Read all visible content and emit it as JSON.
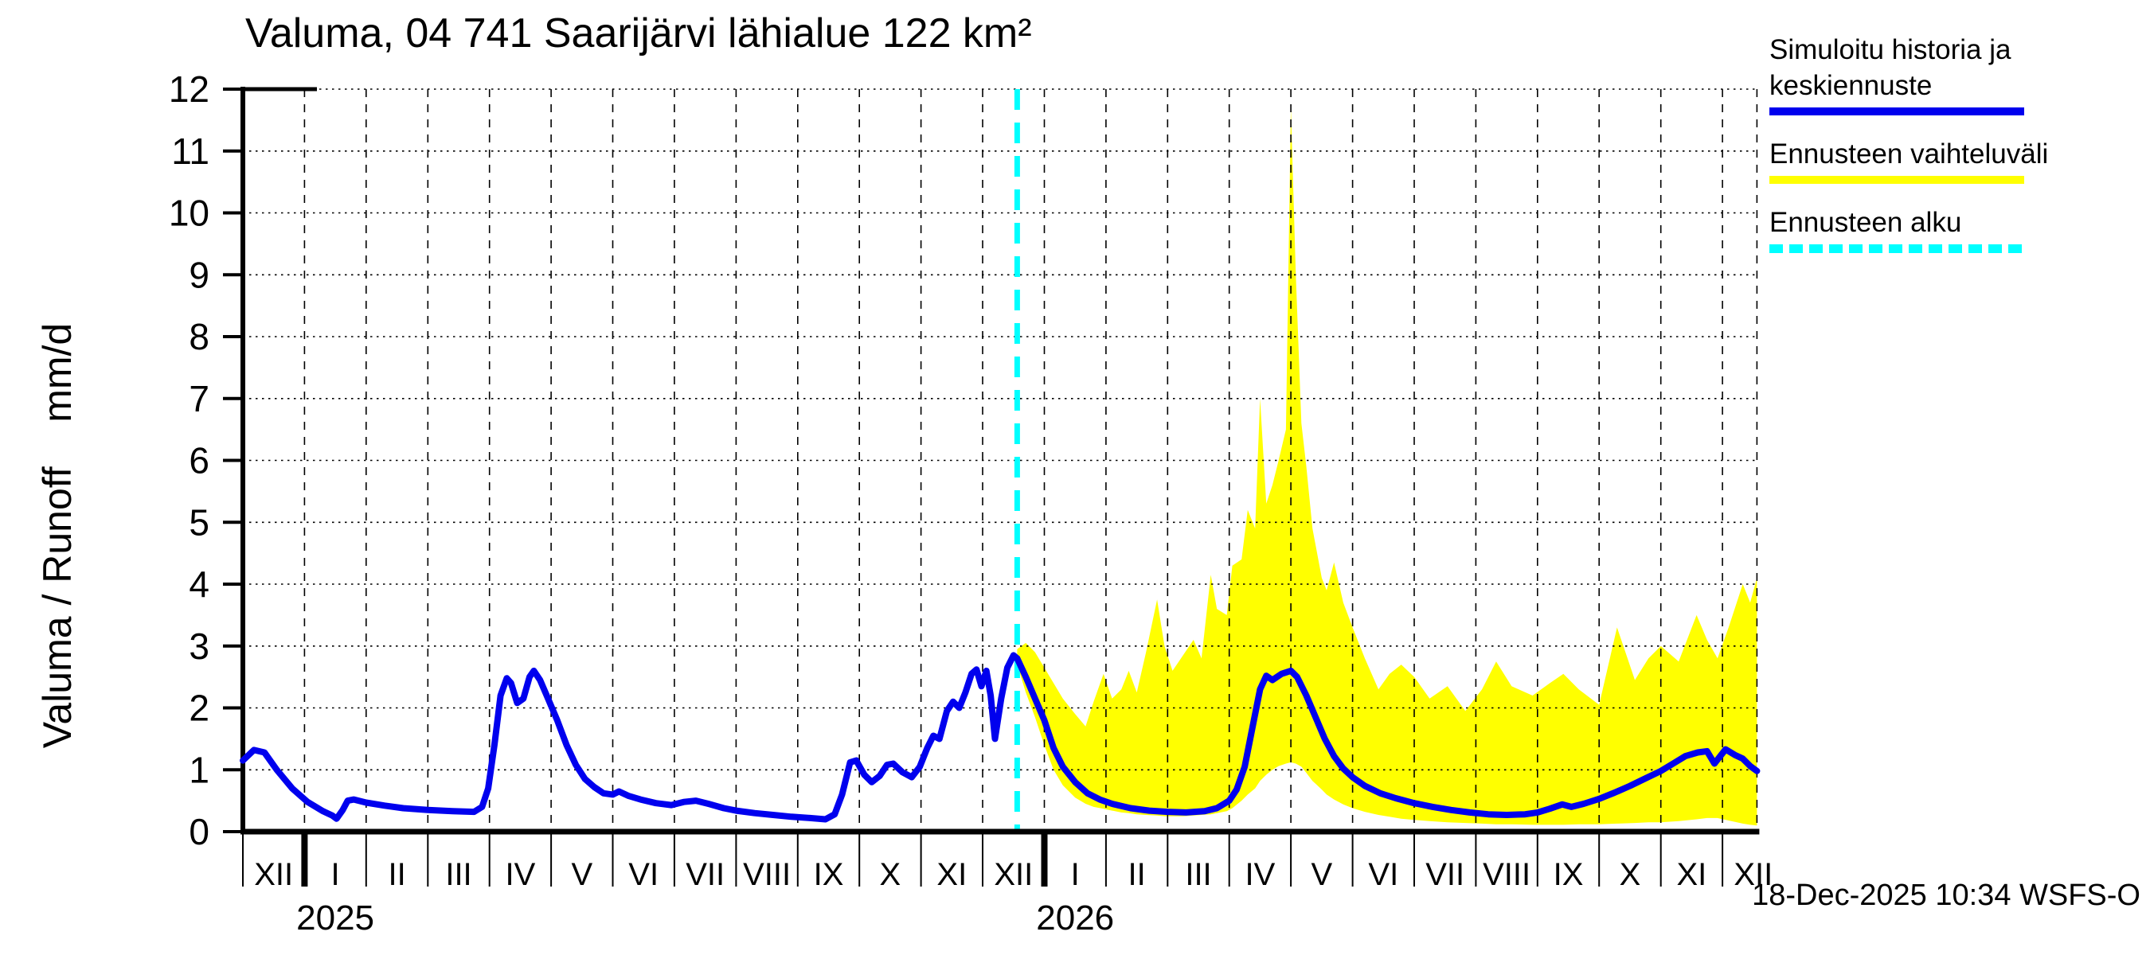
{
  "title": "Valuma, 04 741 Saarijärvi lähialue 122 km²",
  "timestamp": "18-Dec-2025 10:34 WSFS-O",
  "colors": {
    "history_line": "#0000EE",
    "range_fill": "#FFFF00",
    "forecast_start_line": "#00FFFF",
    "grid": "#000000",
    "axis": "#000000",
    "text": "#000000",
    "background": "#FFFFFF"
  },
  "y_axis": {
    "label": "Valuma / Runoff    mm/d",
    "min": 0,
    "max": 12,
    "tick_labels": [
      "0",
      "1",
      "2",
      "3",
      "4",
      "5",
      "6",
      "7",
      "8",
      "9",
      "10",
      "11",
      "12"
    ]
  },
  "x_axis": {
    "month_labels": [
      "XII",
      "I",
      "II",
      "III",
      "IV",
      "V",
      "VI",
      "VII",
      "VIII",
      "IX",
      "X",
      "XI",
      "XII",
      "I",
      "II",
      "III",
      "IV",
      "V",
      "VI",
      "VII",
      "VIII",
      "IX",
      "X",
      "XI",
      "XII"
    ],
    "year_labels": [
      {
        "text": "2025",
        "month_index": 1
      },
      {
        "text": "2026",
        "month_index": 13
      }
    ]
  },
  "legend": {
    "items": [
      {
        "name": "history-and-median-forecast",
        "line1": "Simuloitu historia ja",
        "line2": "keskiennuste",
        "color": "#0000EE",
        "style": "solid"
      },
      {
        "name": "forecast-range",
        "line1": "Ennusteen vaihteluväli",
        "line2": "",
        "color": "#FFFF00",
        "style": "solid"
      },
      {
        "name": "forecast-start",
        "line1": "Ennusteen alku",
        "line2": "",
        "color": "#00FFFF",
        "style": "dashed"
      }
    ]
  },
  "chart_data": {
    "type": "line",
    "title": "Valuma, 04 741 Saarijärvi lähialue 122 km²",
    "ylabel": "Valuma / Runoff mm/d",
    "ylim": [
      0,
      12
    ],
    "x_unit": "months since 2024-12-01 (0 = 1 Dec 2024, 13 = 1 Jan 2026)",
    "x_range": [
      0,
      24.56
    ],
    "grid": "horizontal dotted at each mm/d unit, vertical dashed at each month",
    "forecast_start_x": 12.56,
    "forecast_start_date": "2025-12-18",
    "series": [
      {
        "name": "Simuloitu historia (mm/d)",
        "type": "line",
        "color": "#0000EE",
        "points": [
          [
            0.0,
            1.15
          ],
          [
            0.18,
            1.32
          ],
          [
            0.35,
            1.28
          ],
          [
            0.55,
            1.0
          ],
          [
            0.8,
            0.7
          ],
          [
            1.05,
            0.48
          ],
          [
            1.3,
            0.33
          ],
          [
            1.45,
            0.26
          ],
          [
            1.52,
            0.21
          ],
          [
            1.62,
            0.35
          ],
          [
            1.7,
            0.5
          ],
          [
            1.8,
            0.52
          ],
          [
            2.0,
            0.47
          ],
          [
            2.3,
            0.42
          ],
          [
            2.6,
            0.38
          ],
          [
            3.0,
            0.35
          ],
          [
            3.4,
            0.33
          ],
          [
            3.75,
            0.32
          ],
          [
            3.88,
            0.4
          ],
          [
            3.98,
            0.7
          ],
          [
            4.08,
            1.4
          ],
          [
            4.18,
            2.2
          ],
          [
            4.28,
            2.48
          ],
          [
            4.35,
            2.4
          ],
          [
            4.45,
            2.08
          ],
          [
            4.55,
            2.15
          ],
          [
            4.65,
            2.5
          ],
          [
            4.72,
            2.6
          ],
          [
            4.82,
            2.45
          ],
          [
            4.95,
            2.15
          ],
          [
            5.1,
            1.8
          ],
          [
            5.25,
            1.4
          ],
          [
            5.4,
            1.08
          ],
          [
            5.55,
            0.85
          ],
          [
            5.7,
            0.72
          ],
          [
            5.85,
            0.62
          ],
          [
            6.0,
            0.6
          ],
          [
            6.1,
            0.65
          ],
          [
            6.25,
            0.58
          ],
          [
            6.45,
            0.52
          ],
          [
            6.7,
            0.46
          ],
          [
            6.95,
            0.43
          ],
          [
            7.15,
            0.48
          ],
          [
            7.35,
            0.5
          ],
          [
            7.55,
            0.45
          ],
          [
            7.8,
            0.38
          ],
          [
            8.0,
            0.34
          ],
          [
            8.3,
            0.3
          ],
          [
            8.6,
            0.27
          ],
          [
            8.9,
            0.24
          ],
          [
            9.2,
            0.22
          ],
          [
            9.45,
            0.2
          ],
          [
            9.6,
            0.28
          ],
          [
            9.72,
            0.6
          ],
          [
            9.85,
            1.12
          ],
          [
            9.95,
            1.15
          ],
          [
            10.08,
            0.92
          ],
          [
            10.2,
            0.8
          ],
          [
            10.33,
            0.9
          ],
          [
            10.45,
            1.08
          ],
          [
            10.55,
            1.1
          ],
          [
            10.7,
            0.96
          ],
          [
            10.85,
            0.88
          ],
          [
            10.98,
            1.05
          ],
          [
            11.1,
            1.35
          ],
          [
            11.2,
            1.55
          ],
          [
            11.3,
            1.5
          ],
          [
            11.42,
            1.95
          ],
          [
            11.52,
            2.1
          ],
          [
            11.62,
            2.0
          ],
          [
            11.72,
            2.25
          ],
          [
            11.82,
            2.55
          ],
          [
            11.9,
            2.62
          ],
          [
            11.98,
            2.35
          ],
          [
            12.06,
            2.6
          ],
          [
            12.13,
            2.2
          ],
          [
            12.2,
            1.5
          ],
          [
            12.3,
            2.15
          ],
          [
            12.4,
            2.65
          ],
          [
            12.5,
            2.85
          ],
          [
            12.56,
            2.8
          ]
        ]
      },
      {
        "name": "Keskiennuste (mm/d)",
        "type": "line",
        "color": "#0000EE",
        "points": [
          [
            12.56,
            2.8
          ],
          [
            12.7,
            2.5
          ],
          [
            12.85,
            2.15
          ],
          [
            13.0,
            1.8
          ],
          [
            13.15,
            1.35
          ],
          [
            13.3,
            1.05
          ],
          [
            13.5,
            0.8
          ],
          [
            13.7,
            0.62
          ],
          [
            13.9,
            0.52
          ],
          [
            14.1,
            0.45
          ],
          [
            14.4,
            0.38
          ],
          [
            14.7,
            0.34
          ],
          [
            15.0,
            0.32
          ],
          [
            15.3,
            0.31
          ],
          [
            15.6,
            0.33
          ],
          [
            15.8,
            0.38
          ],
          [
            16.0,
            0.5
          ],
          [
            16.12,
            0.68
          ],
          [
            16.25,
            1.05
          ],
          [
            16.38,
            1.7
          ],
          [
            16.5,
            2.3
          ],
          [
            16.6,
            2.52
          ],
          [
            16.7,
            2.45
          ],
          [
            16.85,
            2.55
          ],
          [
            17.0,
            2.6
          ],
          [
            17.1,
            2.5
          ],
          [
            17.25,
            2.2
          ],
          [
            17.4,
            1.85
          ],
          [
            17.55,
            1.5
          ],
          [
            17.7,
            1.22
          ],
          [
            17.85,
            1.02
          ],
          [
            18.0,
            0.88
          ],
          [
            18.2,
            0.74
          ],
          [
            18.45,
            0.62
          ],
          [
            18.7,
            0.54
          ],
          [
            19.0,
            0.46
          ],
          [
            19.3,
            0.4
          ],
          [
            19.6,
            0.35
          ],
          [
            19.9,
            0.31
          ],
          [
            20.2,
            0.28
          ],
          [
            20.5,
            0.27
          ],
          [
            20.8,
            0.28
          ],
          [
            21.0,
            0.31
          ],
          [
            21.2,
            0.37
          ],
          [
            21.4,
            0.44
          ],
          [
            21.55,
            0.4
          ],
          [
            21.75,
            0.45
          ],
          [
            22.0,
            0.53
          ],
          [
            22.25,
            0.63
          ],
          [
            22.5,
            0.74
          ],
          [
            22.75,
            0.86
          ],
          [
            23.0,
            0.98
          ],
          [
            23.2,
            1.1
          ],
          [
            23.4,
            1.22
          ],
          [
            23.6,
            1.28
          ],
          [
            23.75,
            1.3
          ],
          [
            23.87,
            1.1
          ],
          [
            24.05,
            1.33
          ],
          [
            24.2,
            1.24
          ],
          [
            24.33,
            1.18
          ],
          [
            24.45,
            1.06
          ],
          [
            24.56,
            0.98
          ]
        ]
      },
      {
        "name": "Ennusteen vaihteluväli (mm/d)",
        "type": "band",
        "color": "#FFFF00",
        "points_x_lo_hi": [
          [
            12.56,
            2.7,
            2.95
          ],
          [
            12.7,
            2.25,
            3.05
          ],
          [
            12.85,
            1.85,
            2.9
          ],
          [
            13.0,
            1.4,
            2.65
          ],
          [
            13.15,
            1.0,
            2.4
          ],
          [
            13.3,
            0.75,
            2.15
          ],
          [
            13.5,
            0.55,
            1.9
          ],
          [
            13.67,
            0.45,
            1.7
          ],
          [
            13.8,
            0.4,
            2.1
          ],
          [
            13.96,
            0.37,
            2.55
          ],
          [
            14.1,
            0.34,
            2.15
          ],
          [
            14.25,
            0.31,
            2.3
          ],
          [
            14.37,
            0.3,
            2.6
          ],
          [
            14.5,
            0.28,
            2.25
          ],
          [
            14.65,
            0.27,
            2.9
          ],
          [
            14.83,
            0.26,
            3.75
          ],
          [
            14.95,
            0.25,
            3.0
          ],
          [
            15.08,
            0.25,
            2.6
          ],
          [
            15.25,
            0.25,
            2.85
          ],
          [
            15.42,
            0.26,
            3.1
          ],
          [
            15.55,
            0.27,
            2.8
          ],
          [
            15.7,
            0.28,
            4.15
          ],
          [
            15.8,
            0.3,
            3.6
          ],
          [
            15.96,
            0.33,
            3.5
          ],
          [
            16.05,
            0.38,
            4.3
          ],
          [
            16.2,
            0.5,
            4.4
          ],
          [
            16.3,
            0.6,
            5.2
          ],
          [
            16.42,
            0.7,
            4.9
          ],
          [
            16.5,
            0.82,
            7.0
          ],
          [
            16.6,
            0.92,
            5.3
          ],
          [
            16.7,
            1.0,
            5.6
          ],
          [
            16.8,
            1.06,
            6.0
          ],
          [
            16.92,
            1.1,
            6.5
          ],
          [
            17.0,
            1.12,
            11.7
          ],
          [
            17.08,
            1.1,
            9.0
          ],
          [
            17.17,
            1.05,
            6.6
          ],
          [
            17.25,
            0.95,
            5.9
          ],
          [
            17.35,
            0.82,
            4.9
          ],
          [
            17.5,
            0.68,
            4.1
          ],
          [
            17.58,
            0.6,
            3.9
          ],
          [
            17.7,
            0.52,
            4.35
          ],
          [
            17.85,
            0.44,
            3.7
          ],
          [
            18.0,
            0.38,
            3.3
          ],
          [
            18.2,
            0.32,
            2.8
          ],
          [
            18.42,
            0.27,
            2.3
          ],
          [
            18.6,
            0.24,
            2.55
          ],
          [
            18.79,
            0.21,
            2.7
          ],
          [
            19.0,
            0.19,
            2.5
          ],
          [
            19.25,
            0.17,
            2.15
          ],
          [
            19.54,
            0.15,
            2.35
          ],
          [
            19.83,
            0.14,
            1.95
          ],
          [
            20.1,
            0.13,
            2.3
          ],
          [
            20.33,
            0.12,
            2.75
          ],
          [
            20.58,
            0.12,
            2.35
          ],
          [
            20.92,
            0.11,
            2.2
          ],
          [
            21.2,
            0.11,
            2.4
          ],
          [
            21.42,
            0.11,
            2.55
          ],
          [
            21.67,
            0.12,
            2.3
          ],
          [
            22.0,
            0.12,
            2.05
          ],
          [
            22.29,
            0.13,
            3.3
          ],
          [
            22.58,
            0.14,
            2.45
          ],
          [
            22.8,
            0.15,
            2.8
          ],
          [
            23.0,
            0.15,
            3.0
          ],
          [
            23.29,
            0.17,
            2.75
          ],
          [
            23.58,
            0.2,
            3.5
          ],
          [
            23.75,
            0.22,
            3.1
          ],
          [
            23.92,
            0.22,
            2.8
          ],
          [
            24.1,
            0.18,
            3.3
          ],
          [
            24.33,
            0.13,
            4.0
          ],
          [
            24.45,
            0.11,
            3.7
          ],
          [
            24.56,
            0.1,
            4.1
          ]
        ]
      }
    ],
    "legend_entries": [
      "Simuloitu historia ja keskiennuste",
      "Ennusteen vaihteluväli",
      "Ennusteen alku"
    ],
    "legend_position": "top-right, outside plot"
  }
}
